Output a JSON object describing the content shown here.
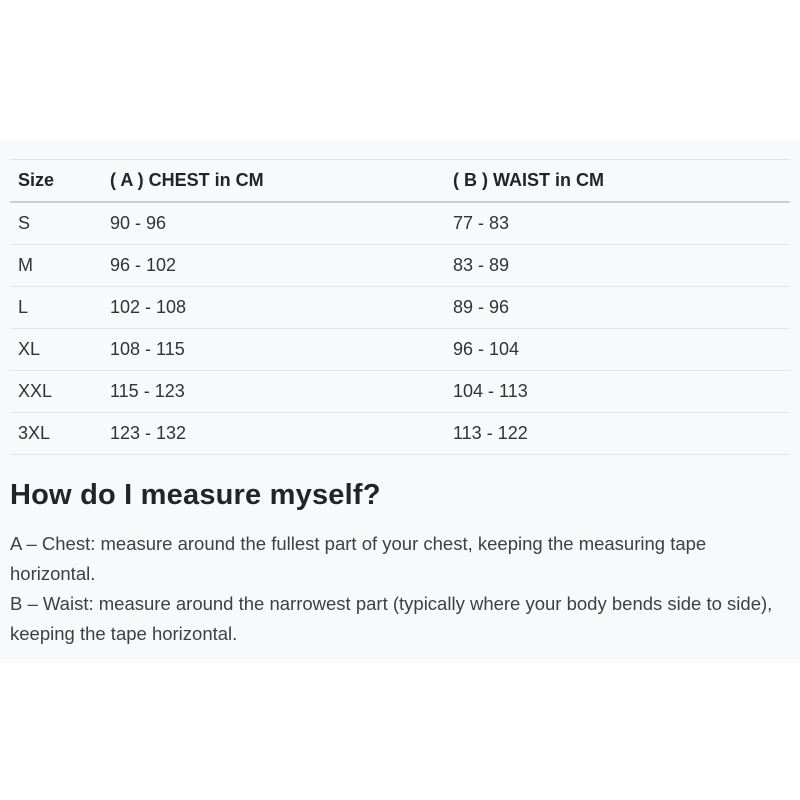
{
  "size_chart": {
    "columns": {
      "size": "Size",
      "chest": "( A ) CHEST in CM",
      "waist": "( B ) WAIST in CM"
    },
    "rows": [
      {
        "size": "S",
        "chest": "90 - 96",
        "waist": "77 - 83"
      },
      {
        "size": "M",
        "chest": "96 - 102",
        "waist": "83 - 89"
      },
      {
        "size": "L",
        "chest": "102 - 108",
        "waist": "89 - 96"
      },
      {
        "size": "XL",
        "chest": "108 - 115",
        "waist": "96 - 104"
      },
      {
        "size": "XXL",
        "chest": "115 - 123",
        "waist": "104 - 113"
      },
      {
        "size": "3XL",
        "chest": "123 - 132",
        "waist": "113 - 122"
      }
    ]
  },
  "measure_guide": {
    "heading": "How do I measure myself?",
    "paragraphs": [
      "A – Chest: measure around the fullest part of your chest, keeping the measuring tape horizontal.",
      "B – Waist: measure around the narrowest part (typically where your body bends side to side), keeping the tape horizontal."
    ]
  },
  "colors": {
    "section_background": "#f8f9fa",
    "page_background": "#ffffff",
    "row_border": "#e2e5e8",
    "header_border": "#c9cdd1",
    "heading_text": "#212529",
    "body_text": "#3d4144"
  }
}
